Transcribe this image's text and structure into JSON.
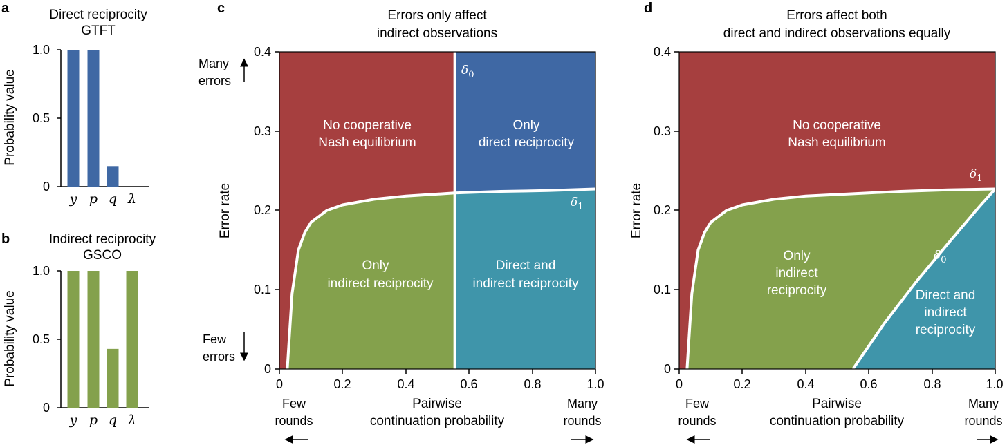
{
  "colors": {
    "red": "#a63f3f",
    "blue": "#3f68a4",
    "green": "#84a14c",
    "teal": "#3f95aa",
    "white": "#ffffff"
  },
  "panel_a": {
    "letter": "a",
    "title_line1": "Direct reciprocity",
    "title_line2": "GTFT",
    "ylabel": "Probability value",
    "yticks": [
      "0",
      "0.5",
      "1.0"
    ]
  },
  "panel_b": {
    "letter": "b",
    "title_line1": "Indirect reciprocity",
    "title_line2": "GSCO",
    "ylabel": "Probability value",
    "yticks": [
      "0",
      "0.5",
      "1.0"
    ]
  },
  "panel_c": {
    "letter": "c",
    "title_line1": "Errors only affect",
    "title_line2": "indirect observations",
    "ylabel": "Error rate",
    "xlabel_line1": "Pairwise",
    "xlabel_line2": "continuation probability",
    "xticks": [
      "0",
      "0.2",
      "0.4",
      "0.6",
      "0.8",
      "1.0"
    ],
    "yticks": [
      "0",
      "0.1",
      "0.2",
      "0.3",
      "0.4"
    ],
    "many_errors_1": "Many",
    "many_errors_2": "errors",
    "few_errors_1": "Few",
    "few_errors_2": "errors",
    "few_rounds_1": "Few",
    "few_rounds_2": "rounds",
    "many_rounds_1": "Many",
    "many_rounds_2": "rounds",
    "region_no_coop_1": "No cooperative",
    "region_no_coop_2": "Nash equilibrium",
    "region_direct_1": "Only",
    "region_direct_2": "direct reciprocity",
    "region_indirect_1": "Only",
    "region_indirect_2": "indirect reciprocity",
    "region_both_1": "Direct and",
    "region_both_2": "indirect reciprocity",
    "delta0": "δ0",
    "delta1": "δ1"
  },
  "panel_d": {
    "letter": "d",
    "title_line1": "Errors affect both",
    "title_line2": "direct and indirect observations equally",
    "ylabel": "Error rate",
    "xlabel_line1": "Pairwise",
    "xlabel_line2": "continuation probability",
    "xticks": [
      "0",
      "0.2",
      "0.4",
      "0.6",
      "0.8",
      "1.0"
    ],
    "yticks": [
      "0",
      "0.1",
      "0.2",
      "0.3",
      "0.4"
    ],
    "few_rounds_1": "Few",
    "few_rounds_2": "rounds",
    "many_rounds_1": "Many",
    "many_rounds_2": "rounds",
    "region_no_coop_1": "No cooperative",
    "region_no_coop_2": "Nash equilibrium",
    "region_indirect_1": "Only",
    "region_indirect_2": "indirect",
    "region_indirect_3": "reciprocity",
    "region_both_1": "Direct and",
    "region_both_2": "indirect",
    "region_both_3": "reciprocity",
    "delta0": "δ0",
    "delta1": "δ1"
  },
  "chart_data": [
    {
      "type": "bar",
      "panel": "a",
      "title": "Direct reciprocity GTFT",
      "categories": [
        "y",
        "p",
        "q",
        "λ"
      ],
      "values": [
        1.0,
        1.0,
        0.15,
        0.0
      ],
      "ylabel": "Probability value",
      "ylim": [
        0,
        1.0
      ],
      "color": "#3f68a4"
    },
    {
      "type": "bar",
      "panel": "b",
      "title": "Indirect reciprocity GSCO",
      "categories": [
        "y",
        "p",
        "q",
        "λ"
      ],
      "values": [
        1.0,
        1.0,
        0.43,
        1.0
      ],
      "ylabel": "Probability value",
      "ylim": [
        0,
        1.0
      ],
      "color": "#84a14c"
    },
    {
      "type": "area",
      "panel": "c",
      "title": "Errors only affect indirect observations",
      "xlabel": "Pairwise continuation probability",
      "ylabel": "Error rate",
      "xlim": [
        0,
        1.0
      ],
      "ylim": [
        0,
        0.4
      ],
      "delta0_x": 0.555,
      "delta1_curve": {
        "x": [
          0.025,
          0.04,
          0.06,
          0.08,
          0.1,
          0.15,
          0.2,
          0.3,
          0.4,
          0.555,
          0.7,
          0.85,
          1.0
        ],
        "y": [
          0.0,
          0.095,
          0.15,
          0.172,
          0.185,
          0.2,
          0.207,
          0.214,
          0.218,
          0.222,
          0.224,
          0.225,
          0.227
        ]
      }
    },
    {
      "type": "area",
      "panel": "d",
      "title": "Errors affect both direct and indirect observations equally",
      "xlabel": "Pairwise continuation probability",
      "ylabel": "Error rate",
      "xlim": [
        0,
        1.0
      ],
      "ylim": [
        0,
        0.4
      ],
      "delta1_curve": {
        "x": [
          0.025,
          0.04,
          0.06,
          0.08,
          0.1,
          0.15,
          0.2,
          0.3,
          0.4,
          0.55,
          0.7,
          0.85,
          1.0
        ],
        "y": [
          0.0,
          0.095,
          0.15,
          0.172,
          0.185,
          0.2,
          0.207,
          0.214,
          0.218,
          0.221,
          0.224,
          0.226,
          0.227
        ]
      },
      "delta0_curve": {
        "x": [
          0.55,
          0.65,
          0.75,
          0.85,
          0.95,
          1.0
        ],
        "y": [
          0.0,
          0.058,
          0.11,
          0.158,
          0.205,
          0.227
        ]
      }
    }
  ]
}
